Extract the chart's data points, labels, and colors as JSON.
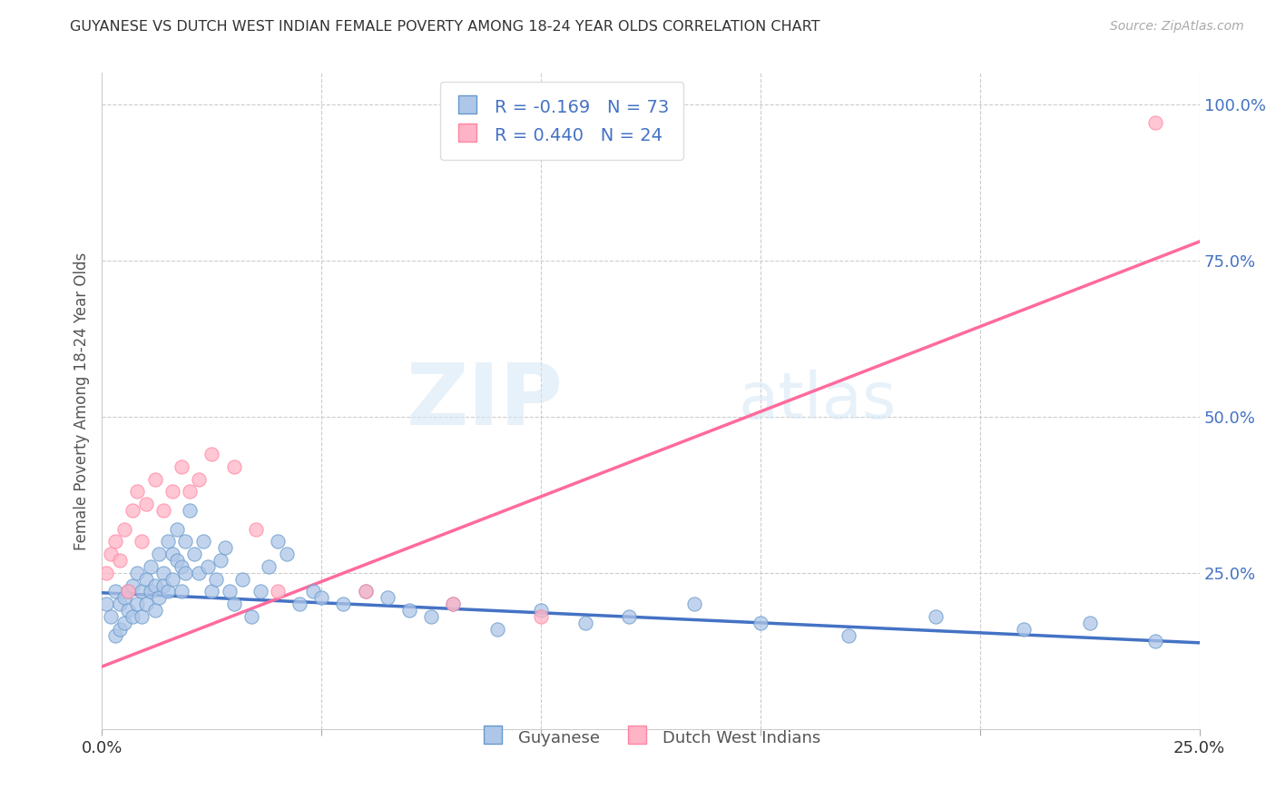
{
  "title": "GUYANESE VS DUTCH WEST INDIAN FEMALE POVERTY AMONG 18-24 YEAR OLDS CORRELATION CHART",
  "source": "Source: ZipAtlas.com",
  "ylabel": "Female Poverty Among 18-24 Year Olds",
  "xlim": [
    0.0,
    0.25
  ],
  "ylim": [
    0.0,
    1.05
  ],
  "xticks": [
    0.0,
    0.05,
    0.1,
    0.15,
    0.2,
    0.25
  ],
  "yticks_right": [
    0.25,
    0.5,
    0.75,
    1.0
  ],
  "ytick_labels_right": [
    "25.0%",
    "50.0%",
    "75.0%",
    "100.0%"
  ],
  "blue_R": -0.169,
  "blue_N": 73,
  "pink_R": 0.44,
  "pink_N": 24,
  "blue_color": "#AEC6E8",
  "pink_color": "#FFB3C6",
  "blue_edge_color": "#6699CC",
  "pink_edge_color": "#FF85A1",
  "blue_line_color": "#4472C4",
  "pink_line_color": "#FF6B9D",
  "legend_label_blue": "Guyanese",
  "legend_label_pink": "Dutch West Indians",
  "blue_trend_x": [
    0.0,
    0.25
  ],
  "blue_trend_y": [
    0.218,
    0.138
  ],
  "pink_trend_x": [
    0.0,
    0.25
  ],
  "pink_trend_y": [
    0.1,
    0.78
  ],
  "blue_scatter_x": [
    0.001,
    0.002,
    0.003,
    0.003,
    0.004,
    0.004,
    0.005,
    0.005,
    0.006,
    0.006,
    0.007,
    0.007,
    0.008,
    0.008,
    0.009,
    0.009,
    0.01,
    0.01,
    0.011,
    0.011,
    0.012,
    0.012,
    0.013,
    0.013,
    0.014,
    0.014,
    0.015,
    0.015,
    0.016,
    0.016,
    0.017,
    0.017,
    0.018,
    0.018,
    0.019,
    0.019,
    0.02,
    0.021,
    0.022,
    0.023,
    0.024,
    0.025,
    0.026,
    0.027,
    0.028,
    0.029,
    0.03,
    0.032,
    0.034,
    0.036,
    0.038,
    0.04,
    0.042,
    0.045,
    0.048,
    0.05,
    0.055,
    0.06,
    0.065,
    0.07,
    0.075,
    0.08,
    0.09,
    0.1,
    0.11,
    0.12,
    0.135,
    0.15,
    0.17,
    0.19,
    0.21,
    0.225,
    0.24
  ],
  "blue_scatter_y": [
    0.2,
    0.18,
    0.22,
    0.15,
    0.16,
    0.2,
    0.17,
    0.21,
    0.19,
    0.22,
    0.18,
    0.23,
    0.2,
    0.25,
    0.22,
    0.18,
    0.24,
    0.2,
    0.26,
    0.22,
    0.23,
    0.19,
    0.28,
    0.21,
    0.25,
    0.23,
    0.3,
    0.22,
    0.28,
    0.24,
    0.32,
    0.27,
    0.26,
    0.22,
    0.3,
    0.25,
    0.35,
    0.28,
    0.25,
    0.3,
    0.26,
    0.22,
    0.24,
    0.27,
    0.29,
    0.22,
    0.2,
    0.24,
    0.18,
    0.22,
    0.26,
    0.3,
    0.28,
    0.2,
    0.22,
    0.21,
    0.2,
    0.22,
    0.21,
    0.19,
    0.18,
    0.2,
    0.16,
    0.19,
    0.17,
    0.18,
    0.2,
    0.17,
    0.15,
    0.18,
    0.16,
    0.17,
    0.14
  ],
  "pink_scatter_x": [
    0.001,
    0.002,
    0.003,
    0.004,
    0.005,
    0.006,
    0.007,
    0.008,
    0.009,
    0.01,
    0.012,
    0.014,
    0.016,
    0.018,
    0.02,
    0.022,
    0.025,
    0.03,
    0.035,
    0.04,
    0.06,
    0.08,
    0.1,
    0.24
  ],
  "pink_scatter_y": [
    0.25,
    0.28,
    0.3,
    0.27,
    0.32,
    0.22,
    0.35,
    0.38,
    0.3,
    0.36,
    0.4,
    0.35,
    0.38,
    0.42,
    0.38,
    0.4,
    0.44,
    0.42,
    0.32,
    0.22,
    0.22,
    0.2,
    0.18,
    0.97
  ]
}
